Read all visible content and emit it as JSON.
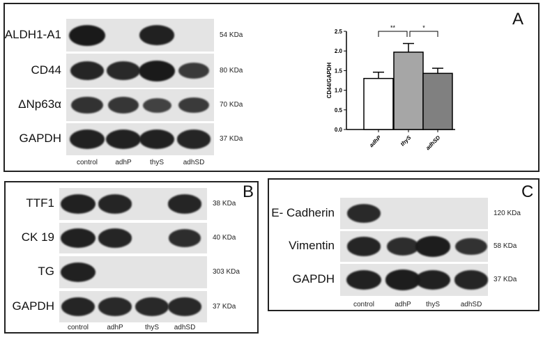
{
  "lanes": [
    "control",
    "adhP",
    "thyS",
    "adhSD"
  ],
  "panels": [
    {
      "id": "A",
      "label": "A",
      "rows": [
        {
          "protein": "ALDH1-A1",
          "kda": "54 KDa",
          "bands": [
            1.0,
            0,
            0.9,
            0
          ]
        },
        {
          "protein": "CD44",
          "kda": "80 KDa",
          "bands": [
            0.85,
            0.8,
            1.0,
            0.6
          ]
        },
        {
          "protein": "ΔNp63α",
          "kda": "70 KDa",
          "bands": [
            0.7,
            0.65,
            0.5,
            0.6
          ]
        },
        {
          "protein": "GAPDH",
          "kda": "37 KDa",
          "bands": [
            0.9,
            0.9,
            0.9,
            0.85
          ]
        }
      ]
    },
    {
      "id": "B",
      "label": "B",
      "rows": [
        {
          "protein": "TTF1",
          "kda": "38 KDa",
          "bands": [
            0.9,
            0.85,
            0,
            0.85
          ]
        },
        {
          "protein": "CK 19",
          "kda": "40 KDa",
          "bands": [
            0.9,
            0.85,
            0,
            0.75
          ]
        },
        {
          "protein": "TG",
          "kda": "303 KDa",
          "bands": [
            0.9,
            0,
            0,
            0
          ]
        },
        {
          "protein": "GAPDH",
          "kda": "37 KDa",
          "bands": [
            0.85,
            0.8,
            0.8,
            0.8
          ]
        }
      ]
    },
    {
      "id": "C",
      "label": "C",
      "rows": [
        {
          "protein": "E- Cadherin",
          "kda": "120 KDa",
          "bands": [
            0.8,
            0,
            0,
            0
          ]
        },
        {
          "protein": "Vimentin",
          "kda": "58 KDa",
          "bands": [
            0.85,
            0.75,
            0.95,
            0.7
          ]
        },
        {
          "protein": "GAPDH",
          "kda": "37 KDa",
          "bands": [
            0.9,
            0.95,
            0.9,
            0.85
          ]
        }
      ]
    }
  ],
  "chart_data": {
    "type": "bar",
    "categories": [
      "adhP",
      "thyS",
      "adhSD"
    ],
    "values": [
      1.3,
      1.97,
      1.43
    ],
    "errors": [
      0.16,
      0.22,
      0.13
    ],
    "colors": [
      "#ffffff",
      "#a6a6a6",
      "#808080"
    ],
    "ylabel": "CD44/GAPDH",
    "ylim": [
      0,
      2.5
    ],
    "yticks": [
      "0.0",
      "0.5",
      "1.0",
      "1.5",
      "2.0",
      "2.5"
    ],
    "significance": [
      {
        "from": "adhP",
        "to": "thyS",
        "label": "**"
      },
      {
        "from": "thyS",
        "to": "adhSD",
        "label": "*"
      }
    ],
    "grid": false
  }
}
